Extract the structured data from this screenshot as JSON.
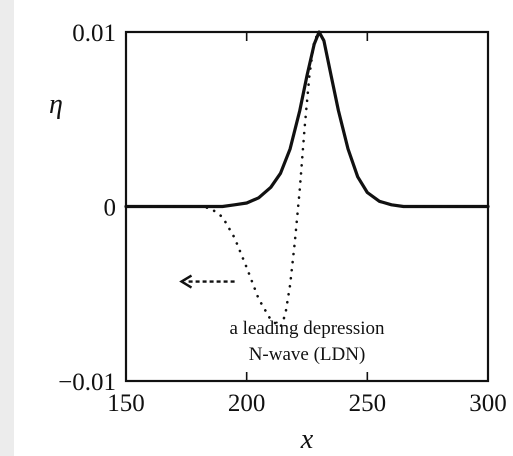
{
  "chart_data": {
    "type": "line",
    "xlabel": "x",
    "ylabel": "η",
    "xlim": [
      150,
      300
    ],
    "ylim": [
      -0.01,
      0.01
    ],
    "x_ticks": [
      150,
      200,
      250,
      300
    ],
    "x_tick_labels": [
      "150",
      "200",
      "250",
      "300"
    ],
    "y_ticks": [
      -0.01,
      0,
      0.01
    ],
    "y_tick_labels": [
      "−0.01",
      "0",
      "0.01"
    ],
    "grid": false,
    "series": [
      {
        "style": "solid",
        "x": [
          150,
          170,
          180,
          190,
          195,
          200,
          205,
          210,
          214,
          218,
          222,
          225,
          228,
          230,
          232,
          235,
          238,
          242,
          246,
          250,
          255,
          260,
          265,
          270,
          280,
          290,
          300
        ],
        "y": [
          0,
          0,
          0,
          0,
          0.0001,
          0.0002,
          0.0005,
          0.0011,
          0.0019,
          0.0033,
          0.0055,
          0.0075,
          0.0093,
          0.01,
          0.0095,
          0.0075,
          0.0055,
          0.0033,
          0.0017,
          0.0008,
          0.0003,
          0.0001,
          0,
          0,
          0,
          0,
          0
        ]
      },
      {
        "style": "dotted",
        "x": [
          150,
          170,
          180,
          185,
          190,
          195,
          200,
          205,
          210,
          214,
          216,
          218,
          220,
          222,
          224,
          226,
          228,
          230,
          232,
          235,
          238,
          242,
          246,
          250,
          255,
          260,
          265,
          270,
          280,
          290,
          300
        ],
        "y": [
          0,
          0,
          0,
          -0.0001,
          -0.0006,
          -0.0018,
          -0.0035,
          -0.0053,
          -0.0065,
          -0.0069,
          -0.0062,
          -0.0045,
          -0.002,
          0.001,
          0.0045,
          0.0075,
          0.0095,
          0.01,
          0.0095,
          0.0075,
          0.0055,
          0.0033,
          0.0017,
          0.0008,
          0.0003,
          0.0001,
          0,
          0,
          0,
          0,
          0
        ]
      }
    ],
    "annotations": [
      {
        "text": "a leading depression",
        "x": 225,
        "y": -0.0073
      },
      {
        "text": "N-wave (LDN)",
        "x": 225,
        "y": -0.0088
      }
    ],
    "arrow": {
      "x_from": 195,
      "x_to": 173,
      "y": -0.0043
    }
  }
}
